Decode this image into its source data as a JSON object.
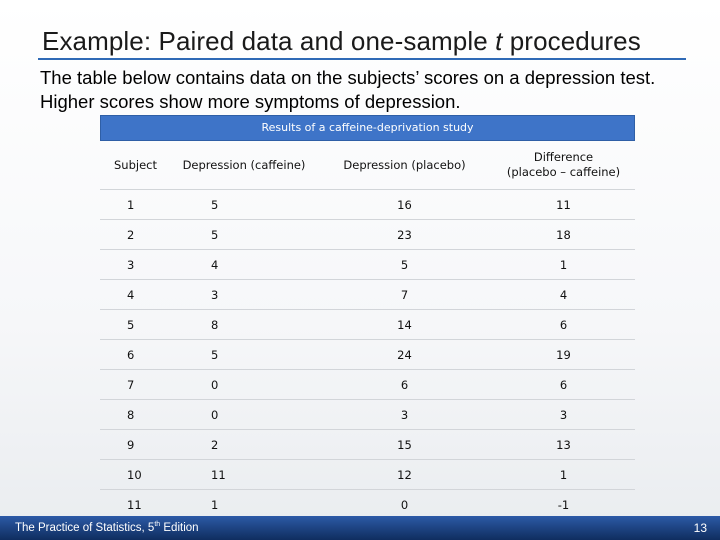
{
  "slide": {
    "title": "Example: Paired data and one-sample t procedures",
    "title_prefix": "Example: Paired data and one-sample ",
    "title_italic": "t",
    "title_suffix": " procedures",
    "intro": "The table below contains data on the subjects’ scores on a depression test. Higher scores show more symptoms of depression."
  },
  "table": {
    "caption": "Results of a caffeine-deprivation study",
    "headers": {
      "subject": "Subject",
      "caffeine": "Depression (caffeine)",
      "placebo": "Depression (placebo)",
      "difference_line1": "Difference",
      "difference_line2": "(placebo – caffeine)"
    },
    "rows": [
      [
        "1",
        "5",
        "16",
        "11"
      ],
      [
        "2",
        "5",
        "23",
        "18"
      ],
      [
        "3",
        "4",
        "5",
        "1"
      ],
      [
        "4",
        "3",
        "7",
        "4"
      ],
      [
        "5",
        "8",
        "14",
        "6"
      ],
      [
        "6",
        "5",
        "24",
        "19"
      ],
      [
        "7",
        "0",
        "6",
        "6"
      ],
      [
        "8",
        "0",
        "3",
        "3"
      ],
      [
        "9",
        "2",
        "15",
        "13"
      ],
      [
        "10",
        "11",
        "12",
        "1"
      ],
      [
        "11",
        "1",
        "0",
        "-1"
      ]
    ]
  },
  "footer": {
    "book_prefix": "The Practice of Statistics, 5",
    "book_sup": "th",
    "book_suffix": " Edition",
    "page_number": "13"
  },
  "colors": {
    "accent": "#2f6ab6",
    "caption_bg": "#3e74c8",
    "footer_bg": "#1b3f7d"
  }
}
